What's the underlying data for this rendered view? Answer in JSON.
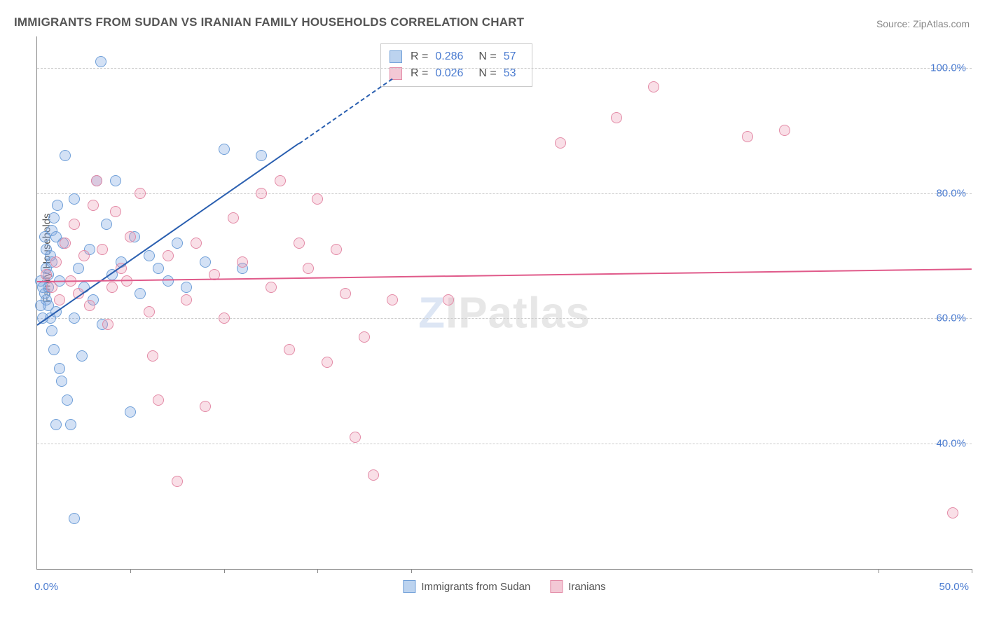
{
  "title": "IMMIGRANTS FROM SUDAN VS IRANIAN FAMILY HOUSEHOLDS CORRELATION CHART",
  "source": "Source: ZipAtlas.com",
  "ylabel": "Family Households",
  "watermark_left": "Z",
  "watermark_right": "IPatlas",
  "chart": {
    "type": "scatter",
    "background_color": "#ffffff",
    "grid_color": "#cccccc",
    "axis_color": "#888888",
    "text_color": "#555555",
    "value_color": "#4a7bd0",
    "xlim": [
      0,
      50
    ],
    "ylim": [
      20,
      105
    ],
    "yticks": [
      40,
      60,
      80,
      100
    ],
    "ytick_labels": [
      "40.0%",
      "60.0%",
      "80.0%",
      "100.0%"
    ],
    "xtick_positions": [
      5,
      10,
      15,
      20,
      45,
      50
    ],
    "x_axis_label_left": "0.0%",
    "x_axis_label_right": "50.0%",
    "marker_radius": 8,
    "marker_border_width": 1.5,
    "series": [
      {
        "name": "Immigrants from Sudan",
        "fill_color": "rgba(130,170,225,0.35)",
        "border_color": "#6f9fd8",
        "swatch_fill": "#bcd3ef",
        "swatch_border": "#6f9fd8",
        "R": "0.286",
        "N": "57",
        "trend": {
          "x1": 0,
          "y1": 59,
          "x2": 14,
          "y2": 88,
          "extend_to_x": 19,
          "color": "#2a5fb0"
        },
        "points": [
          [
            0.2,
            66
          ],
          [
            0.3,
            65
          ],
          [
            0.4,
            64
          ],
          [
            0.5,
            68
          ],
          [
            0.5,
            63
          ],
          [
            0.6,
            67
          ],
          [
            0.6,
            62
          ],
          [
            0.7,
            70
          ],
          [
            0.7,
            60
          ],
          [
            0.8,
            74
          ],
          [
            0.8,
            58
          ],
          [
            0.9,
            76
          ],
          [
            0.9,
            55
          ],
          [
            1.0,
            73
          ],
          [
            1.0,
            61
          ],
          [
            1.1,
            78
          ],
          [
            1.2,
            66
          ],
          [
            1.2,
            52
          ],
          [
            1.3,
            50
          ],
          [
            1.4,
            72
          ],
          [
            1.5,
            86
          ],
          [
            1.6,
            47
          ],
          [
            1.8,
            43
          ],
          [
            2.0,
            79
          ],
          [
            2.0,
            60
          ],
          [
            2.2,
            68
          ],
          [
            2.4,
            54
          ],
          [
            2.5,
            65
          ],
          [
            2.8,
            71
          ],
          [
            3.0,
            63
          ],
          [
            3.2,
            82
          ],
          [
            3.4,
            101
          ],
          [
            3.5,
            59
          ],
          [
            3.7,
            75
          ],
          [
            4.0,
            67
          ],
          [
            4.2,
            82
          ],
          [
            4.5,
            69
          ],
          [
            5.0,
            45
          ],
          [
            5.2,
            73
          ],
          [
            5.5,
            64
          ],
          [
            6.0,
            70
          ],
          [
            6.5,
            68
          ],
          [
            7.0,
            66
          ],
          [
            7.5,
            72
          ],
          [
            8.0,
            65
          ],
          [
            9.0,
            69
          ],
          [
            10.0,
            87
          ],
          [
            11.0,
            68
          ],
          [
            12.0,
            86
          ],
          [
            2.0,
            28
          ],
          [
            1.0,
            43
          ],
          [
            0.4,
            73
          ],
          [
            0.5,
            71
          ],
          [
            0.6,
            65
          ],
          [
            0.3,
            60
          ],
          [
            0.2,
            62
          ],
          [
            0.8,
            69
          ]
        ]
      },
      {
        "name": "Iranians",
        "fill_color": "rgba(235,150,175,0.30)",
        "border_color": "#e38aa6",
        "swatch_fill": "#f3c8d5",
        "swatch_border": "#e38aa6",
        "R": "0.026",
        "N": "53",
        "trend": {
          "x1": 0,
          "y1": 66,
          "x2": 50,
          "y2": 68,
          "color": "#e05a8a"
        },
        "points": [
          [
            0.5,
            67
          ],
          [
            0.8,
            65
          ],
          [
            1.0,
            69
          ],
          [
            1.2,
            63
          ],
          [
            1.5,
            72
          ],
          [
            1.8,
            66
          ],
          [
            2.0,
            75
          ],
          [
            2.2,
            64
          ],
          [
            2.5,
            70
          ],
          [
            3.0,
            78
          ],
          [
            3.2,
            82
          ],
          [
            3.5,
            71
          ],
          [
            4.0,
            65
          ],
          [
            4.2,
            77
          ],
          [
            4.5,
            68
          ],
          [
            5.0,
            73
          ],
          [
            5.5,
            80
          ],
          [
            6.0,
            61
          ],
          [
            6.5,
            47
          ],
          [
            7.0,
            70
          ],
          [
            7.5,
            34
          ],
          [
            8.0,
            63
          ],
          [
            8.5,
            72
          ],
          [
            9.0,
            46
          ],
          [
            9.5,
            67
          ],
          [
            10.0,
            60
          ],
          [
            10.5,
            76
          ],
          [
            11.0,
            69
          ],
          [
            12.0,
            80
          ],
          [
            12.5,
            65
          ],
          [
            13.0,
            82
          ],
          [
            13.5,
            55
          ],
          [
            14.0,
            72
          ],
          [
            14.5,
            68
          ],
          [
            15.0,
            79
          ],
          [
            15.5,
            53
          ],
          [
            16.0,
            71
          ],
          [
            16.5,
            64
          ],
          [
            17.0,
            41
          ],
          [
            17.5,
            57
          ],
          [
            18.0,
            35
          ],
          [
            19.0,
            63
          ],
          [
            22.0,
            63
          ],
          [
            28.0,
            88
          ],
          [
            31.0,
            92
          ],
          [
            33.0,
            97
          ],
          [
            38.0,
            89
          ],
          [
            40.0,
            90
          ],
          [
            49.0,
            29
          ],
          [
            3.8,
            59
          ],
          [
            6.2,
            54
          ],
          [
            2.8,
            62
          ],
          [
            4.8,
            66
          ]
        ]
      }
    ]
  },
  "legend_bottom": [
    {
      "label": "Immigrants from Sudan",
      "series": 0
    },
    {
      "label": "Iranians",
      "series": 1
    }
  ]
}
